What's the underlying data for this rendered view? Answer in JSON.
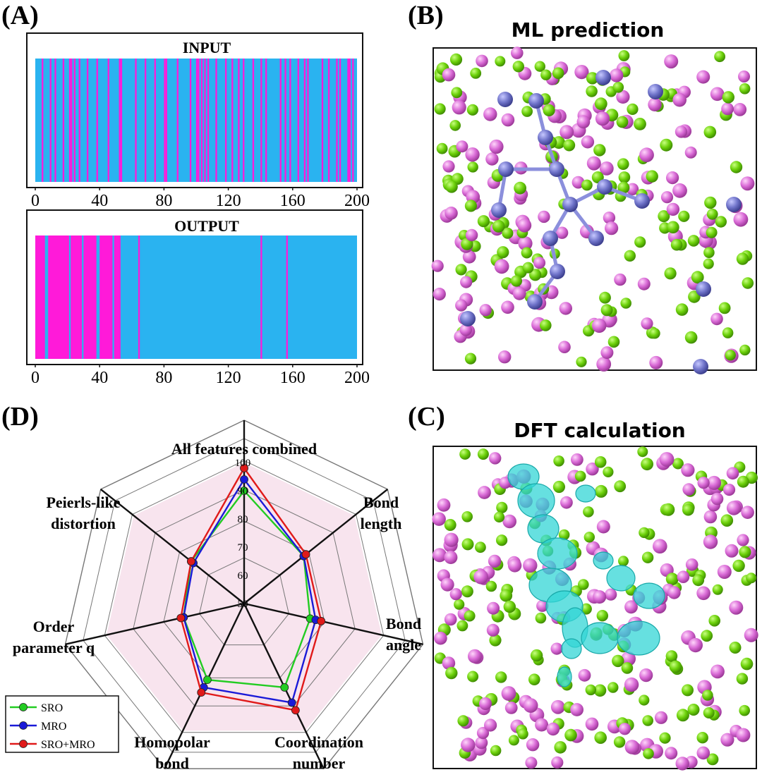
{
  "panels": {
    "A": {
      "letter": "(A)"
    },
    "B": {
      "letter": "(B)",
      "title": "ML prediction"
    },
    "C": {
      "letter": "(C)",
      "title": "DFT calculation"
    },
    "D": {
      "letter": "(D)"
    }
  },
  "colors": {
    "cyan": "#2ab3f0",
    "magenta": "#ff1ad9",
    "green_atom": "#6cd10a",
    "pink_atom": "#d96ad6",
    "blue_atom": "#6f73c9",
    "isosurface": "#33d6d6",
    "sro": "#22cc22",
    "mro": "#1a1ad8",
    "sromro": "#e01a1a",
    "radar_fill": "#f8e4ee"
  },
  "chart_data": [
    {
      "type": "heatmap",
      "title": "INPUT",
      "x_ticks": [
        "0",
        "40",
        "80",
        "120",
        "160",
        "200"
      ],
      "xlim": [
        0,
        200
      ],
      "magenta_positions": [
        4,
        9,
        12,
        17,
        21,
        22,
        24,
        27,
        32,
        38,
        45,
        52,
        53,
        62,
        68,
        74,
        80,
        81,
        88,
        96,
        100,
        101,
        103,
        105,
        107,
        112,
        118,
        122,
        126,
        129,
        135,
        140,
        143,
        152,
        155,
        158,
        163,
        167,
        169,
        178,
        182,
        187,
        189,
        194,
        195,
        197
      ]
    },
    {
      "type": "heatmap",
      "title": "OUTPUT",
      "x_ticks": [
        "0",
        "40",
        "80",
        "120",
        "160",
        "200"
      ],
      "xlim": [
        0,
        200
      ],
      "magenta_ranges": [
        [
          0,
          6
        ],
        [
          8,
          21
        ],
        [
          22,
          29
        ],
        [
          30,
          38
        ],
        [
          40,
          48
        ],
        [
          49,
          53
        ],
        [
          64,
          65
        ],
        [
          140,
          141
        ],
        [
          156,
          157
        ]
      ]
    },
    {
      "type": "radar",
      "axes": [
        "All features combined",
        "Bond length",
        "Bond angle",
        "Coordination number",
        "Homopolar bond",
        "Order parameter q",
        "Peierls-like distortion"
      ],
      "axis_label_lines": [
        [
          "All features combined"
        ],
        [
          "Bond",
          "length"
        ],
        [
          "Bond",
          "angle"
        ],
        [
          "Coordination",
          "number"
        ],
        [
          "Homopolar",
          "bond"
        ],
        [
          "Order",
          "parameter q"
        ],
        [
          "Peierls-like",
          "distortion"
        ]
      ],
      "r_ticks": [
        "50",
        "60",
        "70",
        "80",
        "90",
        "100"
      ],
      "rlim": [
        50,
        100
      ],
      "series": [
        {
          "name": "SRO",
          "values": [
            90,
            77,
            74,
            83,
            80,
            72,
            74
          ]
        },
        {
          "name": "MRO",
          "values": [
            94,
            77,
            76,
            89,
            83,
            72,
            73
          ]
        },
        {
          "name": "SRO+MRO",
          "values": [
            98,
            78,
            78,
            92,
            85,
            73,
            74
          ]
        }
      ]
    }
  ]
}
